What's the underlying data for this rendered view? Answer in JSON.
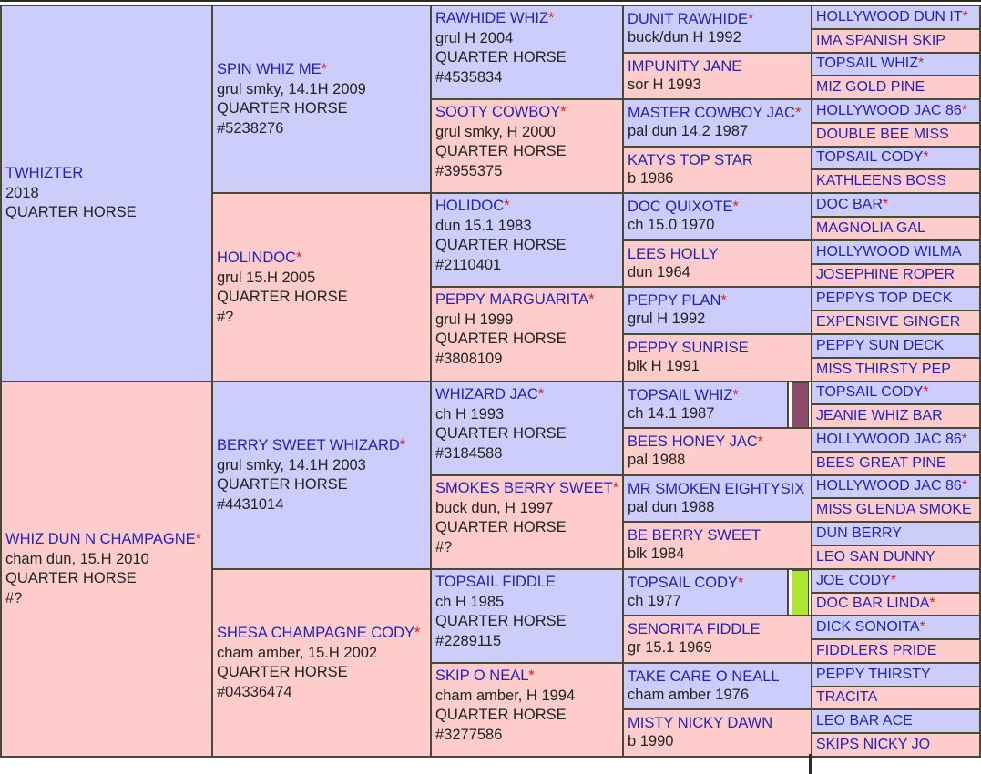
{
  "pedigree": [
    {
      "key": "subject",
      "name": "TWHIZTER",
      "star": false,
      "lines": [
        "2018",
        "QUARTER HORSE"
      ],
      "sex": "male",
      "size": "bigname"
    },
    {
      "key": "dam",
      "name": "WHIZ DUN N CHAMPAGNE",
      "star": true,
      "lines": [
        "cham dun, 15.H 2010",
        "QUARTER HORSE",
        "#?"
      ],
      "sex": "female",
      "size": "bigname"
    },
    {
      "key": "s_sire",
      "name": "SPIN WHIZ ME",
      "star": true,
      "lines": [
        "grul smky, 14.1H 2009",
        "QUARTER HORSE",
        "#5238276"
      ],
      "sex": "male",
      "size": "bigname"
    },
    {
      "key": "s_dam",
      "name": "HOLINDOC",
      "star": true,
      "lines": [
        "grul 15.H 2005",
        "QUARTER HORSE",
        "#?"
      ],
      "sex": "female",
      "size": "bigname"
    },
    {
      "key": "d_sire",
      "name": "BERRY SWEET WHIZARD",
      "star": true,
      "lines": [
        "grul smky, 14.1H 2003",
        "QUARTER HORSE",
        "#4431014"
      ],
      "sex": "male",
      "size": "bigname"
    },
    {
      "key": "d_dam",
      "name": "SHESA CHAMPAGNE CODY",
      "star": true,
      "lines": [
        "cham amber, 15.H 2002",
        "QUARTER HORSE",
        "#04336474"
      ],
      "sex": "female",
      "size": "bigname"
    },
    {
      "key": "g1",
      "name": "RAWHIDE WHIZ",
      "star": true,
      "lines": [
        "grul H 2004",
        "QUARTER HORSE",
        "#4535834"
      ],
      "sex": "male",
      "size": "bigname"
    },
    {
      "key": "g2",
      "name": "SOOTY COWBOY",
      "star": true,
      "lines": [
        "grul smky, H 2000",
        "QUARTER HORSE",
        "#3955375"
      ],
      "sex": "female",
      "size": "bigname"
    },
    {
      "key": "g3",
      "name": "HOLIDOC",
      "star": true,
      "lines": [
        "dun 15.1 1983",
        "QUARTER HORSE",
        "#2110401"
      ],
      "sex": "male",
      "size": "bigname"
    },
    {
      "key": "g4",
      "name": "PEPPY MARGUARITA",
      "star": true,
      "lines": [
        "grul H 1999",
        "QUARTER HORSE",
        "#3808109"
      ],
      "sex": "female",
      "size": "bigname"
    },
    {
      "key": "g5",
      "name": "WHIZARD JAC",
      "star": true,
      "lines": [
        "ch H 1993",
        "QUARTER HORSE",
        "#3184588"
      ],
      "sex": "male",
      "size": "bigname"
    },
    {
      "key": "g6",
      "name": "SMOKES BERRY SWEET",
      "star": true,
      "lines": [
        "buck dun, H 1997",
        "QUARTER HORSE",
        "#?"
      ],
      "sex": "female",
      "size": "bigname"
    },
    {
      "key": "g7",
      "name": "TOPSAIL FIDDLE",
      "star": false,
      "lines": [
        "ch H 1985",
        "QUARTER HORSE",
        "#2289115"
      ],
      "sex": "male",
      "size": "bigname"
    },
    {
      "key": "g8",
      "name": "SKIP O NEAL",
      "star": true,
      "lines": [
        "cham amber, H 1994",
        "QUARTER HORSE",
        "#3277586"
      ],
      "sex": "female",
      "size": "bigname"
    },
    {
      "key": "h1",
      "name": "DUNIT RAWHIDE",
      "star": true,
      "lines": [
        "buck/dun H 1992"
      ],
      "sex": "male",
      "size": "small"
    },
    {
      "key": "h2",
      "name": "IMPUNITY JANE",
      "star": false,
      "lines": [
        "sor H 1993"
      ],
      "sex": "female",
      "size": "small"
    },
    {
      "key": "h3",
      "name": "MASTER COWBOY JAC",
      "star": true,
      "lines": [
        "pal dun 14.2 1987"
      ],
      "sex": "male",
      "size": "small"
    },
    {
      "key": "h4",
      "name": "KATYS TOP STAR",
      "star": false,
      "lines": [
        "b 1986"
      ],
      "sex": "female",
      "size": "small"
    },
    {
      "key": "h5",
      "name": "DOC QUIXOTE",
      "star": true,
      "lines": [
        "ch 15.0 1970"
      ],
      "sex": "male",
      "size": "small"
    },
    {
      "key": "h6",
      "name": "LEES HOLLY",
      "star": false,
      "lines": [
        "dun 1964"
      ],
      "sex": "female",
      "size": "small"
    },
    {
      "key": "h7",
      "name": "PEPPY PLAN",
      "star": true,
      "lines": [
        "grul H 1992"
      ],
      "sex": "male",
      "size": "small"
    },
    {
      "key": "h8",
      "name": "PEPPY SUNRISE",
      "star": false,
      "lines": [
        "blk H 1991"
      ],
      "sex": "female",
      "size": "small"
    },
    {
      "key": "h9",
      "name": "TOPSAIL WHIZ",
      "star": true,
      "lines": [
        "ch 14.1 1987"
      ],
      "sex": "male",
      "size": "small"
    },
    {
      "key": "h10",
      "name": "BEES HONEY JAC",
      "star": true,
      "lines": [
        "pal 1988"
      ],
      "sex": "female",
      "size": "small"
    },
    {
      "key": "h11",
      "name": "MR SMOKEN EIGHTYSIX",
      "star": false,
      "lines": [
        "pal dun 1988"
      ],
      "sex": "male",
      "size": "small"
    },
    {
      "key": "h12",
      "name": "BE BERRY SWEET",
      "star": false,
      "lines": [
        "blk 1984"
      ],
      "sex": "female",
      "size": "small"
    },
    {
      "key": "h13",
      "name": "TOPSAIL CODY",
      "star": true,
      "lines": [
        "ch 1977"
      ],
      "sex": "male",
      "size": "small"
    },
    {
      "key": "h14",
      "name": "SENORITA FIDDLE",
      "star": false,
      "lines": [
        "gr 15.1 1969"
      ],
      "sex": "female",
      "size": "small"
    },
    {
      "key": "h15",
      "name": "TAKE CARE O NEALL",
      "star": false,
      "lines": [
        "cham amber 1976"
      ],
      "sex": "male",
      "size": "small"
    },
    {
      "key": "h16",
      "name": "MISTY NICKY DAWN",
      "star": false,
      "lines": [
        "b 1990"
      ],
      "sex": "female",
      "size": "small"
    },
    {
      "key": "i1",
      "name": "HOLLYWOOD DUN IT",
      "star": true,
      "lines": [],
      "sex": "male",
      "size": "tiny"
    },
    {
      "key": "i2",
      "name": "IMA SPANISH SKIP",
      "star": false,
      "lines": [],
      "sex": "female",
      "size": "tiny"
    },
    {
      "key": "i3",
      "name": "TOPSAIL WHIZ",
      "star": true,
      "lines": [],
      "sex": "male",
      "size": "tiny"
    },
    {
      "key": "i4",
      "name": "MIZ GOLD PINE",
      "star": false,
      "lines": [],
      "sex": "female",
      "size": "tiny"
    },
    {
      "key": "i5",
      "name": "HOLLYWOOD JAC 86",
      "star": true,
      "lines": [],
      "sex": "male",
      "size": "tiny"
    },
    {
      "key": "i6",
      "name": "DOUBLE BEE MISS",
      "star": false,
      "lines": [],
      "sex": "female",
      "size": "tiny"
    },
    {
      "key": "i7",
      "name": "TOPSAIL CODY",
      "star": true,
      "lines": [],
      "sex": "male",
      "size": "tiny"
    },
    {
      "key": "i8",
      "name": "KATHLEENS BOSS",
      "star": false,
      "lines": [],
      "sex": "female",
      "size": "tiny"
    },
    {
      "key": "i9",
      "name": "DOC BAR",
      "star": true,
      "lines": [],
      "sex": "male",
      "size": "tiny"
    },
    {
      "key": "i10",
      "name": "MAGNOLIA GAL",
      "star": false,
      "lines": [],
      "sex": "female",
      "size": "tiny"
    },
    {
      "key": "i11",
      "name": "HOLLYWOOD WILMA",
      "star": false,
      "lines": [],
      "sex": "male",
      "size": "tiny"
    },
    {
      "key": "i12",
      "name": "JOSEPHINE ROPER",
      "star": false,
      "lines": [],
      "sex": "female",
      "size": "tiny"
    },
    {
      "key": "i13",
      "name": "PEPPYS TOP DECK",
      "star": false,
      "lines": [],
      "sex": "male",
      "size": "tiny"
    },
    {
      "key": "i14",
      "name": "EXPENSIVE GINGER",
      "star": false,
      "lines": [],
      "sex": "female",
      "size": "tiny"
    },
    {
      "key": "i15",
      "name": "PEPPY SUN DECK",
      "star": false,
      "lines": [],
      "sex": "male",
      "size": "tiny"
    },
    {
      "key": "i16",
      "name": "MISS THIRSTY PEP",
      "star": false,
      "lines": [],
      "sex": "female",
      "size": "tiny"
    },
    {
      "key": "i17",
      "name": "TOPSAIL CODY",
      "star": true,
      "lines": [],
      "sex": "male",
      "size": "tiny"
    },
    {
      "key": "i18",
      "name": "JEANIE WHIZ BAR",
      "star": false,
      "lines": [],
      "sex": "female",
      "size": "tiny"
    },
    {
      "key": "i19",
      "name": "HOLLYWOOD JAC 86",
      "star": true,
      "lines": [],
      "sex": "male",
      "size": "tiny"
    },
    {
      "key": "i20",
      "name": "BEES GREAT PINE",
      "star": false,
      "lines": [],
      "sex": "female",
      "size": "tiny"
    },
    {
      "key": "i21",
      "name": "HOLLYWOOD JAC 86",
      "star": true,
      "lines": [],
      "sex": "male",
      "size": "tiny"
    },
    {
      "key": "i22",
      "name": "MISS GLENDA SMOKE",
      "star": false,
      "lines": [],
      "sex": "female",
      "size": "tiny"
    },
    {
      "key": "i23",
      "name": "DUN BERRY",
      "star": false,
      "lines": [],
      "sex": "male",
      "size": "tiny"
    },
    {
      "key": "i24",
      "name": "LEO SAN DUNNY",
      "star": false,
      "lines": [],
      "sex": "female",
      "size": "tiny"
    },
    {
      "key": "i25",
      "name": "JOE CODY",
      "star": true,
      "lines": [],
      "sex": "male",
      "size": "tiny"
    },
    {
      "key": "i26",
      "name": "DOC BAR LINDA",
      "star": true,
      "lines": [],
      "sex": "female",
      "size": "tiny"
    },
    {
      "key": "i27",
      "name": "DICK SONOITA",
      "star": true,
      "lines": [],
      "sex": "male",
      "size": "tiny"
    },
    {
      "key": "i28",
      "name": "FIDDLERS PRIDE",
      "star": false,
      "lines": [],
      "sex": "female",
      "size": "tiny"
    },
    {
      "key": "i29",
      "name": "PEPPY THIRSTY",
      "star": false,
      "lines": [],
      "sex": "male",
      "size": "tiny"
    },
    {
      "key": "i30",
      "name": "TRACITA",
      "star": false,
      "lines": [],
      "sex": "female",
      "size": "tiny"
    },
    {
      "key": "i31",
      "name": "LEO BAR ACE",
      "star": false,
      "lines": [],
      "sex": "male",
      "size": "tiny"
    },
    {
      "key": "i32",
      "name": "SKIPS NICKY JO",
      "star": false,
      "lines": [],
      "sex": "female",
      "size": "tiny"
    }
  ],
  "star_symbol": "*",
  "colors": {
    "male_bg": "#cdcdfb",
    "female_bg": "#ffcccc",
    "name_text": "#2323b8",
    "star": "#e02020",
    "border": "#4a4a34",
    "marker_topsail_whiz": "#8e4a6a",
    "marker_topsail_cody": "#aee632"
  },
  "markers": [
    {
      "key": "h9",
      "color": "#8e4a6a"
    },
    {
      "key": "h13",
      "color": "#aee632"
    }
  ]
}
